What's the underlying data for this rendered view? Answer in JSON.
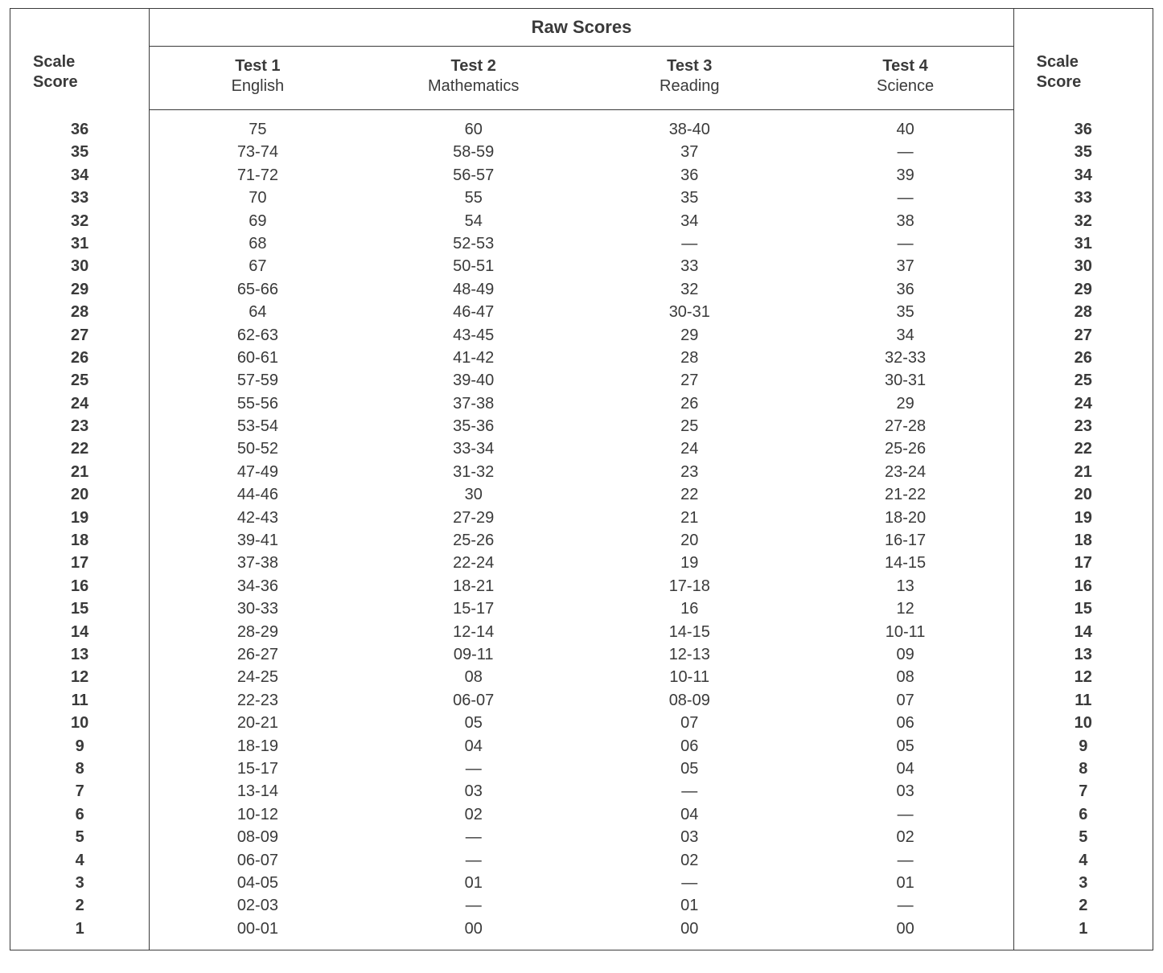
{
  "table": {
    "type": "table",
    "border_color": "#3a3a3a",
    "background_color": "#ffffff",
    "text_color": "#3a3a3a",
    "font_family": "Helvetica, Arial, sans-serif",
    "header": {
      "raw_scores_label": "Raw Scores",
      "scale_score_label_line1": "Scale",
      "scale_score_label_line2": "Score",
      "tests": [
        {
          "num": "Test 1",
          "subject": "English"
        },
        {
          "num": "Test 2",
          "subject": "Mathematics"
        },
        {
          "num": "Test 3",
          "subject": "Reading"
        },
        {
          "num": "Test 4",
          "subject": "Science"
        }
      ],
      "header_fontsize_pt": 16,
      "body_fontsize_pt": 15
    },
    "column_widths_pct": [
      12.2,
      18.9,
      18.9,
      18.9,
      18.9,
      12.2
    ],
    "columns": [
      "Scale Score",
      "Test 1 English",
      "Test 2 Mathematics",
      "Test 3 Reading",
      "Test 4 Science",
      "Scale Score"
    ],
    "bold_columns": [
      0,
      5
    ],
    "rows": [
      [
        "36",
        "75",
        "60",
        "38-40",
        "40",
        "36"
      ],
      [
        "35",
        "73-74",
        "58-59",
        "37",
        "—",
        "35"
      ],
      [
        "34",
        "71-72",
        "56-57",
        "36",
        "39",
        "34"
      ],
      [
        "33",
        "70",
        "55",
        "35",
        "—",
        "33"
      ],
      [
        "32",
        "69",
        "54",
        "34",
        "38",
        "32"
      ],
      [
        "31",
        "68",
        "52-53",
        "—",
        "—",
        "31"
      ],
      [
        "30",
        "67",
        "50-51",
        "33",
        "37",
        "30"
      ],
      [
        "29",
        "65-66",
        "48-49",
        "32",
        "36",
        "29"
      ],
      [
        "28",
        "64",
        "46-47",
        "30-31",
        "35",
        "28"
      ],
      [
        "27",
        "62-63",
        "43-45",
        "29",
        "34",
        "27"
      ],
      [
        "26",
        "60-61",
        "41-42",
        "28",
        "32-33",
        "26"
      ],
      [
        "25",
        "57-59",
        "39-40",
        "27",
        "30-31",
        "25"
      ],
      [
        "24",
        "55-56",
        "37-38",
        "26",
        "29",
        "24"
      ],
      [
        "23",
        "53-54",
        "35-36",
        "25",
        "27-28",
        "23"
      ],
      [
        "22",
        "50-52",
        "33-34",
        "24",
        "25-26",
        "22"
      ],
      [
        "21",
        "47-49",
        "31-32",
        "23",
        "23-24",
        "21"
      ],
      [
        "20",
        "44-46",
        "30",
        "22",
        "21-22",
        "20"
      ],
      [
        "19",
        "42-43",
        "27-29",
        "21",
        "18-20",
        "19"
      ],
      [
        "18",
        "39-41",
        "25-26",
        "20",
        "16-17",
        "18"
      ],
      [
        "17",
        "37-38",
        "22-24",
        "19",
        "14-15",
        "17"
      ],
      [
        "16",
        "34-36",
        "18-21",
        "17-18",
        "13",
        "16"
      ],
      [
        "15",
        "30-33",
        "15-17",
        "16",
        "12",
        "15"
      ],
      [
        "14",
        "28-29",
        "12-14",
        "14-15",
        "10-11",
        "14"
      ],
      [
        "13",
        "26-27",
        "09-11",
        "12-13",
        "09",
        "13"
      ],
      [
        "12",
        "24-25",
        "08",
        "10-11",
        "08",
        "12"
      ],
      [
        "11",
        "22-23",
        "06-07",
        "08-09",
        "07",
        "11"
      ],
      [
        "10",
        "20-21",
        "05",
        "07",
        "06",
        "10"
      ],
      [
        "9",
        "18-19",
        "04",
        "06",
        "05",
        "9"
      ],
      [
        "8",
        "15-17",
        "—",
        "05",
        "04",
        "8"
      ],
      [
        "7",
        "13-14",
        "03",
        "—",
        "03",
        "7"
      ],
      [
        "6",
        "10-12",
        "02",
        "04",
        "—",
        "6"
      ],
      [
        "5",
        "08-09",
        "—",
        "03",
        "02",
        "5"
      ],
      [
        "4",
        "06-07",
        "—",
        "02",
        "—",
        "4"
      ],
      [
        "3",
        "04-05",
        "01",
        "—",
        "01",
        "3"
      ],
      [
        "2",
        "02-03",
        "—",
        "01",
        "—",
        "2"
      ],
      [
        "1",
        "00-01",
        "00",
        "00",
        "00",
        "1"
      ]
    ]
  }
}
